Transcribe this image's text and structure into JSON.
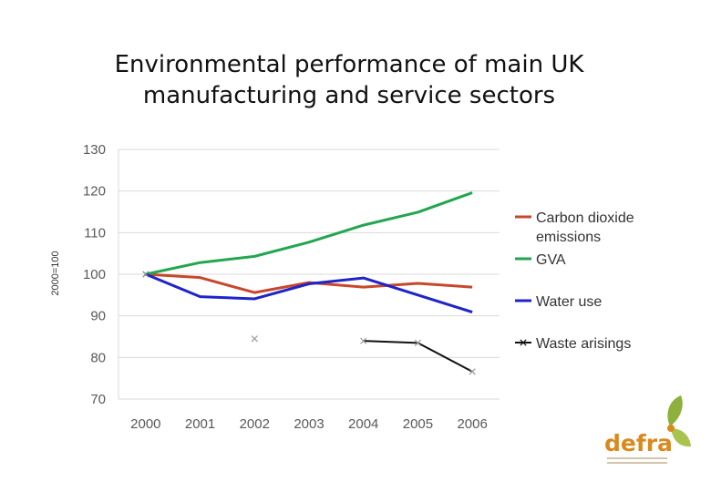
{
  "chart_data": {
    "type": "line",
    "title_lines": [
      "Environmental performance of main UK",
      "manufacturing and service sectors"
    ],
    "ylabel": "2000=100",
    "xlabel": "",
    "categories": [
      "2000",
      "2001",
      "2002",
      "2003",
      "2004",
      "2005",
      "2006"
    ],
    "ylim": [
      70,
      130
    ],
    "yticks": [
      70,
      80,
      90,
      100,
      110,
      120,
      130
    ],
    "grid": true,
    "legend_position": "right",
    "series": [
      {
        "name": "Carbon dioxide emissions",
        "name_lines": [
          "Carbon dioxide",
          "emissions"
        ],
        "color": "#c8472b",
        "values": [
          100,
          99.2,
          95.6,
          98,
          96.9,
          97.8,
          96.9
        ]
      },
      {
        "name": "GVA",
        "name_lines": [
          "GVA"
        ],
        "color": "#22a650",
        "values": [
          100,
          102.8,
          104.3,
          107.7,
          111.8,
          114.9,
          119.6
        ]
      },
      {
        "name": "Water use",
        "name_lines": [
          "Water use"
        ],
        "color": "#1f24c8",
        "values": [
          100,
          94.6,
          94.1,
          97.7,
          99.1,
          95,
          90.9
        ]
      },
      {
        "name": "Waste arisings",
        "name_lines": [
          "Waste arisings"
        ],
        "color": "#111111",
        "values": [
          100,
          null,
          84.5,
          null,
          84,
          83.5,
          76.6
        ]
      }
    ]
  },
  "logo": {
    "name": "defra",
    "color": "#d98a1e",
    "leaf_color": "#8db13c"
  }
}
